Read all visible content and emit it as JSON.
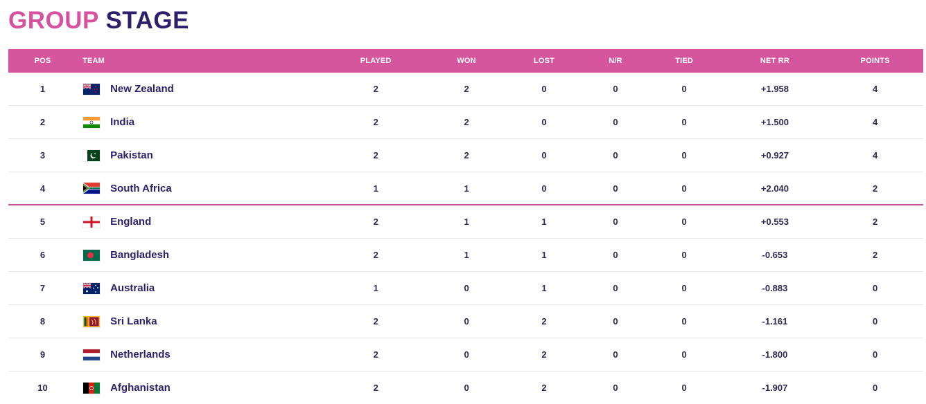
{
  "title": {
    "part1": "GROUP",
    "part2": "STAGE"
  },
  "headers": {
    "pos": "POS",
    "team": "TEAM",
    "played": "PLAYED",
    "won": "WON",
    "lost": "LOST",
    "nr": "N/R",
    "tied": "TIED",
    "nrr": "NET RR",
    "points": "POINTS"
  },
  "rows": [
    {
      "pos": "1",
      "team": "New Zealand",
      "flag": "new-zealand-flag-icon",
      "played": "2",
      "won": "2",
      "lost": "0",
      "nr": "0",
      "tied": "0",
      "nrr": "+1.958",
      "points": "4"
    },
    {
      "pos": "2",
      "team": "India",
      "flag": "india-flag-icon",
      "played": "2",
      "won": "2",
      "lost": "0",
      "nr": "0",
      "tied": "0",
      "nrr": "+1.500",
      "points": "4"
    },
    {
      "pos": "3",
      "team": "Pakistan",
      "flag": "pakistan-flag-icon",
      "played": "2",
      "won": "2",
      "lost": "0",
      "nr": "0",
      "tied": "0",
      "nrr": "+0.927",
      "points": "4"
    },
    {
      "pos": "4",
      "team": "South Africa",
      "flag": "south-africa-flag-icon",
      "played": "1",
      "won": "1",
      "lost": "0",
      "nr": "0",
      "tied": "0",
      "nrr": "+2.040",
      "points": "2"
    },
    {
      "pos": "5",
      "team": "England",
      "flag": "england-flag-icon",
      "played": "2",
      "won": "1",
      "lost": "1",
      "nr": "0",
      "tied": "0",
      "nrr": "+0.553",
      "points": "2"
    },
    {
      "pos": "6",
      "team": "Bangladesh",
      "flag": "bangladesh-flag-icon",
      "played": "2",
      "won": "1",
      "lost": "1",
      "nr": "0",
      "tied": "0",
      "nrr": "-0.653",
      "points": "2"
    },
    {
      "pos": "7",
      "team": "Australia",
      "flag": "australia-flag-icon",
      "played": "1",
      "won": "0",
      "lost": "1",
      "nr": "0",
      "tied": "0",
      "nrr": "-0.883",
      "points": "0"
    },
    {
      "pos": "8",
      "team": "Sri Lanka",
      "flag": "sri-lanka-flag-icon",
      "played": "2",
      "won": "0",
      "lost": "2",
      "nr": "0",
      "tied": "0",
      "nrr": "-1.161",
      "points": "0"
    },
    {
      "pos": "9",
      "team": "Netherlands",
      "flag": "netherlands-flag-icon",
      "played": "2",
      "won": "0",
      "lost": "2",
      "nr": "0",
      "tied": "0",
      "nrr": "-1.800",
      "points": "0"
    },
    {
      "pos": "10",
      "team": "Afghanistan",
      "flag": "afghanistan-flag-icon",
      "played": "2",
      "won": "0",
      "lost": "2",
      "nr": "0",
      "tied": "0",
      "nrr": "-1.907",
      "points": "0"
    }
  ],
  "colors": {
    "title_pink": "#d6529f",
    "title_navy": "#2e1f6b",
    "header_bg": "#d6569e",
    "qualification_line": "#c2549f"
  }
}
